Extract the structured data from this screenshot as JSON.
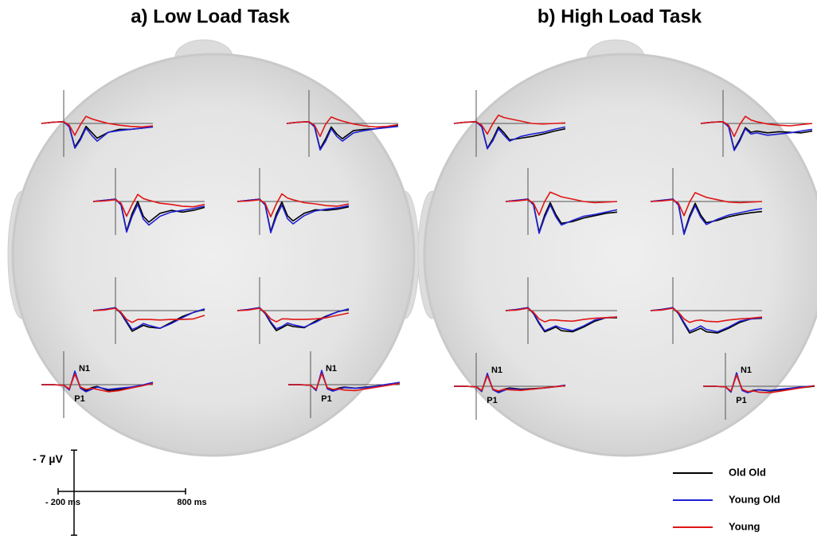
{
  "chart_data": {
    "type": "line",
    "x": [
      -200,
      -100,
      0,
      50,
      100,
      150,
      200,
      250,
      300,
      400,
      500,
      600,
      700,
      800
    ],
    "series": [
      {
        "name": "Old Old",
        "color": "#000000"
      },
      {
        "name": "Young Old",
        "color": "#1f1fd6"
      },
      {
        "name": "Young",
        "color": "#e01515"
      }
    ],
    "scale": {
      "y": {
        "value": -7,
        "label": "- 7 µV"
      },
      "x": [
        {
          "value": -200,
          "label": "- 200 ms"
        },
        {
          "value": 800,
          "label": "800 ms"
        }
      ]
    },
    "tasks": [
      {
        "title": "a) Low Load Task",
        "panels": [
          {
            "values": [
              [
                0,
                -0.2,
                -0.3,
                0.5,
                4,
                2.5,
                0.5,
                1.5,
                2.5,
                1.5,
                1,
                1,
                0.8,
                0.5
              ],
              [
                0,
                -0.2,
                -0.3,
                0.6,
                4.2,
                2.8,
                0.8,
                2,
                3,
                1.5,
                1.2,
                1,
                0.8,
                0.6
              ],
              [
                0,
                -0.2,
                -0.3,
                0.3,
                2,
                0.2,
                -1.2,
                -0.8,
                -0.5,
                0,
                0.3,
                0.5,
                0.6,
                0.4
              ]
            ]
          },
          {
            "values": [
              [
                0,
                -0.2,
                -0.3,
                0.5,
                4.3,
                2.6,
                0.6,
                1.8,
                2.6,
                1.2,
                1,
                0.9,
                0.6,
                0.4
              ],
              [
                0,
                -0.2,
                -0.3,
                0.6,
                4.5,
                3,
                0.9,
                2.2,
                3,
                1.6,
                1.2,
                0.9,
                0.7,
                0.5
              ],
              [
                0,
                -0.2,
                -0.3,
                0.3,
                2.2,
                0.1,
                -1.1,
                -0.7,
                -0.4,
                0.1,
                0.4,
                0.6,
                0.5,
                0.2
              ]
            ]
          },
          {
            "values": [
              [
                0,
                -0.2,
                -0.4,
                0.5,
                5,
                2,
                0,
                2.5,
                3.5,
                2,
                1.5,
                1.8,
                1.5,
                1
              ],
              [
                0,
                -0.2,
                -0.4,
                0.6,
                5.2,
                2.5,
                0.5,
                3,
                4,
                2.5,
                1.8,
                1.5,
                1.2,
                0.8
              ],
              [
                0,
                -0.1,
                -0.3,
                0.3,
                2.5,
                0.5,
                -1.2,
                -0.5,
                -0.2,
                0.3,
                0.5,
                0.8,
                0.9,
                0.5
              ]
            ]
          },
          {
            "values": [
              [
                0,
                -0.2,
                -0.4,
                0.5,
                5.1,
                2.1,
                0.1,
                2.4,
                3.3,
                2,
                1.4,
                1.5,
                1.3,
                0.9
              ],
              [
                0,
                -0.2,
                -0.4,
                0.6,
                5.3,
                2.6,
                0.6,
                2.9,
                3.8,
                2.4,
                1.6,
                1.3,
                1.1,
                0.7
              ],
              [
                0,
                -0.1,
                -0.3,
                0.3,
                2.6,
                0.4,
                -1.3,
                -0.6,
                -0.3,
                0.2,
                0.4,
                0.7,
                0.8,
                0.4
              ]
            ]
          },
          {
            "values": [
              [
                0,
                -0.2,
                -0.5,
                0.5,
                2,
                3.5,
                3,
                2.5,
                2.8,
                3,
                2,
                1,
                0.3,
                -0.2
              ],
              [
                0,
                -0.2,
                -0.5,
                0.4,
                1.8,
                3.2,
                2.8,
                2.2,
                2.5,
                3,
                2.2,
                1.2,
                0.3,
                -0.3
              ],
              [
                0,
                -0.1,
                -0.4,
                0.3,
                1.5,
                2,
                1.5,
                1.5,
                1.5,
                1.6,
                1.5,
                1.5,
                1.4,
                0.8
              ]
            ]
          },
          {
            "values": [
              [
                0,
                -0.2,
                -0.5,
                0.5,
                2.1,
                3.4,
                2.9,
                2.4,
                2.7,
                2.9,
                1.8,
                0.9,
                0.2,
                -0.2
              ],
              [
                0,
                -0.2,
                -0.5,
                0.4,
                1.9,
                3.1,
                2.7,
                2.1,
                2.4,
                2.8,
                2,
                1,
                0.2,
                -0.3
              ],
              [
                0,
                -0.1,
                -0.4,
                0.3,
                1.4,
                1.9,
                1.4,
                1.4,
                1.5,
                1.5,
                1.4,
                1.2,
                0.8,
                0.4
              ]
            ]
          },
          {
            "values": [
              [
                0,
                0,
                0.1,
                0.8,
                -2,
                0.5,
                1,
                0.5,
                0.3,
                1,
                0.8,
                0.5,
                0.2,
                -0.3
              ],
              [
                0,
                0,
                0.1,
                0.9,
                -2.3,
                0.6,
                1.2,
                0.8,
                0.4,
                0.8,
                0.6,
                0.4,
                0.1,
                -0.4
              ],
              [
                0,
                0,
                0.1,
                0.7,
                -1.8,
                0.4,
                0.8,
                0.6,
                0.8,
                1.2,
                1,
                0.6,
                0.2,
                -0.2
              ]
            ],
            "peak_labels": [
              "N1",
              "P1"
            ]
          },
          {
            "values": [
              [
                0,
                0,
                0.1,
                0.9,
                -2.1,
                0.6,
                0.9,
                0.6,
                0.4,
                0.6,
                0.4,
                0.2,
                -0.1,
                -0.3
              ],
              [
                0,
                0,
                0.1,
                1,
                -2.4,
                0.7,
                1.1,
                0.8,
                0.5,
                0.6,
                0.5,
                0.2,
                -0.1,
                -0.4
              ],
              [
                0,
                0,
                0.1,
                0.8,
                -1.9,
                0.5,
                0.8,
                0.7,
                0.9,
                1,
                0.7,
                0.4,
                0.1,
                -0.2
              ]
            ],
            "peak_labels": [
              "N1",
              "P1"
            ]
          }
        ]
      },
      {
        "title": "b) High Load Task",
        "panels": [
          {
            "values": [
              [
                0,
                -0.2,
                -0.3,
                0.5,
                4.2,
                2.6,
                0.6,
                1.6,
                2.8,
                2.5,
                2.2,
                1.8,
                1.3,
                0.9
              ],
              [
                0,
                -0.2,
                -0.3,
                0.6,
                4.3,
                2.9,
                0.9,
                2,
                3,
                2.2,
                1.8,
                1.5,
                1,
                0.6
              ],
              [
                0,
                -0.2,
                -0.3,
                0.3,
                1.8,
                0,
                -1.4,
                -1,
                -0.8,
                -0.4,
                0,
                0.1,
                0,
                -0.1
              ]
            ]
          },
          {
            "values": [
              [
                0,
                -0.2,
                -0.3,
                0.5,
                4.4,
                2.7,
                0.7,
                1.5,
                1.3,
                1.6,
                1.4,
                1.5,
                1.6,
                1.3
              ],
              [
                0,
                -0.2,
                -0.3,
                0.6,
                4.6,
                3,
                0.9,
                1.8,
                1.6,
                2,
                1.8,
                1.6,
                1.3,
                1
              ],
              [
                0,
                -0.2,
                -0.3,
                0.3,
                2.2,
                0.2,
                -1.2,
                -0.6,
                -0.3,
                0.1,
                0.3,
                0.4,
                0.2,
                0
              ]
            ]
          },
          {
            "values": [
              [
                0,
                -0.2,
                -0.4,
                0.5,
                5.2,
                2.3,
                0.2,
                2.2,
                3.7,
                3.4,
                2.8,
                2.4,
                2,
                1.8
              ],
              [
                0,
                -0.2,
                -0.4,
                0.6,
                5.4,
                2.7,
                0.6,
                2.6,
                4,
                3.2,
                2.5,
                2.2,
                1.8,
                1.4
              ],
              [
                0,
                -0.1,
                -0.3,
                0.3,
                2.3,
                0,
                -1.6,
                -1.2,
                -0.8,
                -0.4,
                0,
                0.2,
                0.1,
                0
              ]
            ]
          },
          {
            "values": [
              [
                0,
                -0.2,
                -0.4,
                0.5,
                5.4,
                2.4,
                0.3,
                2.3,
                3.6,
                3.2,
                2.6,
                2.2,
                1.9,
                1.7
              ],
              [
                0,
                -0.2,
                -0.4,
                0.6,
                5.6,
                2.8,
                0.7,
                2.7,
                3.9,
                3,
                2.3,
                1.9,
                1.5,
                1.2
              ],
              [
                0,
                -0.1,
                -0.3,
                0.3,
                2.4,
                0.1,
                -1.5,
                -1.1,
                -0.7,
                -0.3,
                0.1,
                0.2,
                0.1,
                0
              ]
            ]
          },
          {
            "values": [
              [
                0,
                -0.2,
                -0.5,
                0.5,
                2.2,
                3.6,
                3.2,
                2.8,
                3.4,
                3.6,
                2.8,
                1.8,
                1.2,
                1.2
              ],
              [
                0,
                -0.2,
                -0.5,
                0.4,
                2,
                3.4,
                3,
                2.6,
                3,
                3.4,
                2.6,
                1.6,
                1.2,
                1.1
              ],
              [
                0,
                -0.1,
                -0.4,
                0.3,
                1.4,
                1.9,
                1.6,
                1.6,
                1.7,
                1.8,
                1.5,
                1.3,
                1.2,
                1.1
              ]
            ]
          },
          {
            "values": [
              [
                0,
                -0.2,
                -0.5,
                0.5,
                2.2,
                3.8,
                3.4,
                3,
                3.6,
                3.8,
                3,
                2,
                1.4,
                1.3
              ],
              [
                0,
                -0.2,
                -0.5,
                0.4,
                2,
                3.5,
                3.1,
                2.6,
                3.2,
                3.6,
                2.8,
                1.8,
                1.4,
                1.2
              ],
              [
                0,
                -0.1,
                -0.4,
                0.3,
                1.4,
                2,
                1.7,
                1.6,
                1.8,
                1.9,
                1.6,
                1.4,
                1.3,
                1.1
              ]
            ]
          },
          {
            "values": [
              [
                0,
                0,
                0.1,
                0.8,
                -1.9,
                0.5,
                0.9,
                0.5,
                0.3,
                0.5,
                0.4,
                0.3,
                0.1,
                -0.1
              ],
              [
                0,
                0,
                0.1,
                0.9,
                -2.2,
                0.6,
                1.1,
                0.7,
                0.4,
                0.6,
                0.5,
                0.3,
                0.1,
                -0.2
              ],
              [
                0,
                0,
                0.1,
                0.7,
                -1.8,
                0.5,
                0.8,
                0.5,
                0.6,
                0.7,
                0.5,
                0.3,
                0.1,
                -0.1
              ]
            ],
            "peak_labels": [
              "N1",
              "P1"
            ]
          },
          {
            "values": [
              [
                0,
                0,
                0.1,
                0.9,
                -2,
                0.6,
                1,
                0.7,
                0.6,
                0.8,
                0.6,
                0.4,
                0.2,
                0
              ],
              [
                0,
                0,
                0.1,
                1,
                -2.3,
                0.7,
                1.1,
                0.8,
                0.6,
                0.7,
                0.5,
                0.3,
                0.1,
                -0.1
              ],
              [
                0,
                0,
                0.1,
                0.8,
                -1.9,
                0.5,
                0.9,
                0.8,
                1,
                1.1,
                0.8,
                0.5,
                0.2,
                -0.1
              ]
            ],
            "peak_labels": [
              "N1",
              "P1"
            ]
          }
        ]
      }
    ]
  }
}
